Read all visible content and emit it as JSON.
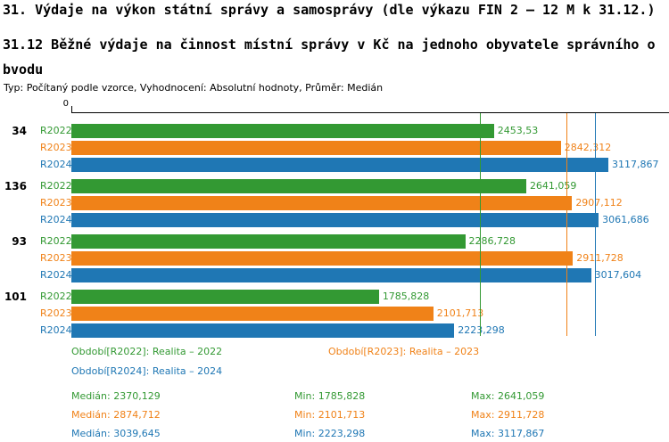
{
  "report": {
    "title": "31. Výdaje na výkon státní správy a samosprávy (dle výkazu FIN 2 – 12 M k 31.12.)",
    "subtitle": "31.12 Běžné výdaje na činnost místní správy v Kč na jednoho obyvatele správního obvodu",
    "meta": "Typ: Počítaný podle vzorce, Vyhodnocení: Absolutní hodnoty, Průměr: Medián"
  },
  "colors": {
    "r2022": "#339933",
    "r2023": "#f08218",
    "r2024": "#1f77b4",
    "axis": "#000000"
  },
  "chart_data": {
    "type": "bar",
    "orientation": "horizontal",
    "axis": {
      "zero_label": "0",
      "xmin": 0,
      "xmax": 3470
    },
    "grid": "median-reference-lines",
    "legend_position": "bottom",
    "categories": [
      "34",
      "136",
      "93",
      "101"
    ],
    "series": [
      {
        "name": "R2022",
        "color_key": "r2022",
        "values": [
          2453.53,
          2641.059,
          2286.728,
          1785.828
        ],
        "value_labels": [
          "2453,53",
          "2641,059",
          "2286,728",
          "1785,828"
        ],
        "median": 2370.129,
        "min": 1785.828,
        "max": 2641.059
      },
      {
        "name": "R2023",
        "color_key": "r2023",
        "values": [
          2842.312,
          2907.112,
          2911.728,
          2101.713
        ],
        "value_labels": [
          "2842,312",
          "2907,112",
          "2911,728",
          "2101,713"
        ],
        "median": 2874.712,
        "min": 2101.713,
        "max": 2911.728
      },
      {
        "name": "R2024",
        "color_key": "r2024",
        "values": [
          3117.867,
          3061.686,
          3017.604,
          2223.298
        ],
        "value_labels": [
          "3117,867",
          "3061,686",
          "3017,604",
          "2223,298"
        ],
        "median": 3039.645,
        "min": 2223.298,
        "max": 3117.867
      }
    ]
  },
  "legend": {
    "items": [
      {
        "label": "Období[R2022]: Realita – 2022",
        "color_key": "r2022"
      },
      {
        "label": "Období[R2023]: Realita – 2023",
        "color_key": "r2023"
      },
      {
        "label": "Období[R2024]: Realita – 2024",
        "color_key": "r2024"
      }
    ]
  },
  "stats": {
    "rows": [
      {
        "color_key": "r2022",
        "median": "Medián: 2370,129",
        "min": "Min: 1785,828",
        "max": "Max: 2641,059"
      },
      {
        "color_key": "r2023",
        "median": "Medián: 2874,712",
        "min": "Min: 2101,713",
        "max": "Max: 2911,728"
      },
      {
        "color_key": "r2024",
        "median": "Medián: 3039,645",
        "min": "Min: 2223,298",
        "max": "Max: 3117,867"
      }
    ]
  }
}
